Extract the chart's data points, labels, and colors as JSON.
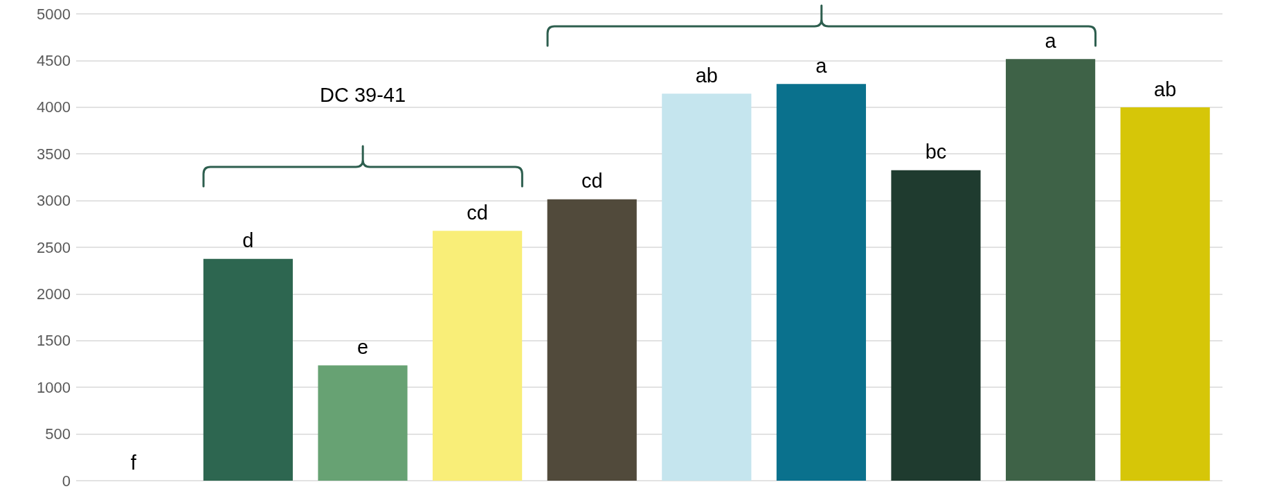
{
  "chart_data": {
    "type": "bar",
    "categories": [
      null,
      null,
      null,
      null,
      null,
      null,
      null,
      null,
      null,
      null
    ],
    "values": [
      0,
      2375,
      1235,
      2677,
      3014,
      4145,
      4249,
      3325,
      4516,
      3998
    ],
    "colors": [
      "#2d6650",
      "#2d6650",
      "#67a273",
      "#f9ee78",
      "#514a3b",
      "#c5e5ee",
      "#0a718d",
      "#1f3b2f",
      "#3e6247",
      "#d6c608"
    ],
    "value_labels": [
      "f",
      "d",
      "e",
      "cd",
      "cd",
      "ab",
      "a",
      "bc",
      "a",
      "ab"
    ],
    "ylim": [
      0,
      5000
    ],
    "yticks": [
      0,
      500,
      1000,
      1500,
      2000,
      2500,
      3000,
      3500,
      4000,
      4500,
      5000
    ],
    "grid": "y",
    "tick_labels": "y",
    "annotations": [
      "DC 39-41"
    ]
  }
}
